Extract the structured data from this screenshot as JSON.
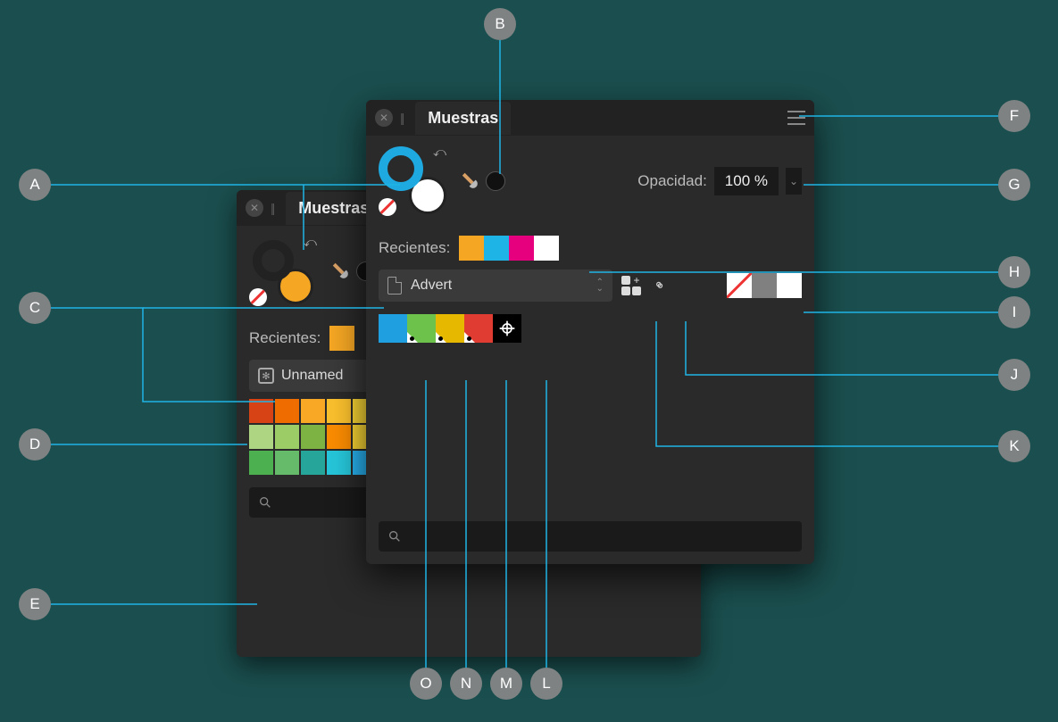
{
  "callouts": {
    "A": "A",
    "B": "B",
    "C": "C",
    "D": "D",
    "E": "E",
    "F": "F",
    "G": "G",
    "H": "H",
    "I": "I",
    "J": "J",
    "K": "K",
    "L": "L",
    "M": "M",
    "N": "N",
    "O": "O"
  },
  "callout_bg": "#7e8283",
  "line_color": "#1fb4e6",
  "bg_color": "#1b4f4f",
  "panel_back": {
    "title": "Muestras",
    "recent_label": "Recientes:",
    "palette_name": "Unnamed",
    "grid_colors": [
      "#d84315",
      "#ef6c00",
      "#f9a825",
      "#fbc02d",
      "#fdd835",
      "#afb42b",
      "#c0ca33",
      "#e65100",
      "#ef6c00",
      "#f57f17",
      "#f9a825",
      "#cddc39",
      "#c0ca33",
      "#9ccc65",
      "#ef6c00",
      "#f57f17",
      "#fbc02d",
      "#d4e157",
      "#aed581",
      "#9ccc65",
      "#7cb342",
      "#fb8c00",
      "#fdd835",
      "#cddc39",
      "#aed581",
      "#81c784",
      "#66bb6a",
      "#4caf50",
      "#fbc02d",
      "#cddc39",
      "#aed581",
      "#81c784",
      "#66bb6a",
      "#4caf50",
      "#43a047",
      "#43a047",
      "#4caf50",
      "#66bb6a",
      "#26a69a",
      "#26c6da",
      "#29b6f6",
      "#42a5f5",
      "#5c6bc0",
      "#7e57c2",
      "#ab47bc",
      "#ec407a",
      "#d81b60",
      "#c0ca33",
      "#9ccc65",
      "#afb42b",
      "#827717",
      "#9e9d24",
      "#689f38"
    ]
  },
  "panel_front": {
    "title": "Muestras",
    "opacity_label": "Opacidad:",
    "opacity_value": "100 %",
    "recent_label": "Recientes:",
    "recent_colors": [
      "#f5a623",
      "#1fb4e6",
      "#e6007e",
      "#ffffff"
    ],
    "palette_name": "Advert",
    "quick_swatches": {
      "none": true,
      "mid": "#808080",
      "white": "#ffffff"
    },
    "palette_colors": [
      {
        "color": "#1f9fe0",
        "global": false
      },
      {
        "color": "#6cc24a",
        "global": true
      },
      {
        "color": "#e6b800",
        "global": true
      },
      {
        "color": "#e03c31",
        "global": true
      }
    ],
    "registration_color": "#000000",
    "stroke_ring_color": "#1fa9e1",
    "fill_color": "#ffffff"
  }
}
